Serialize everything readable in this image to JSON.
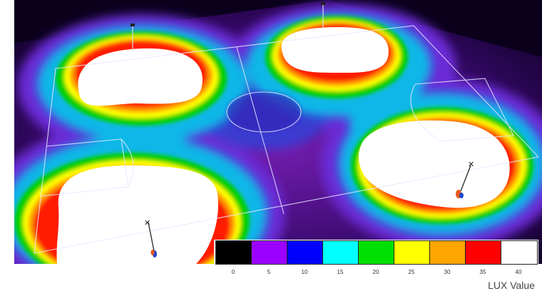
{
  "legend": {
    "caption": "LUX Value",
    "bins": [
      {
        "value": "0",
        "color": "#000000"
      },
      {
        "value": "5",
        "color": "#9b00ff"
      },
      {
        "value": "10",
        "color": "#0000ff"
      },
      {
        "value": "15",
        "color": "#00ffff"
      },
      {
        "value": "20",
        "color": "#00e000"
      },
      {
        "value": "25",
        "color": "#ffff00"
      },
      {
        "value": "30",
        "color": "#ffa500"
      },
      {
        "value": "35",
        "color": "#ff0000"
      },
      {
        "value": "40",
        "color": "#ffffff"
      }
    ]
  },
  "scene": {
    "subject": "floodlit-football-pitch-illuminance-map",
    "light_poles": 4
  }
}
